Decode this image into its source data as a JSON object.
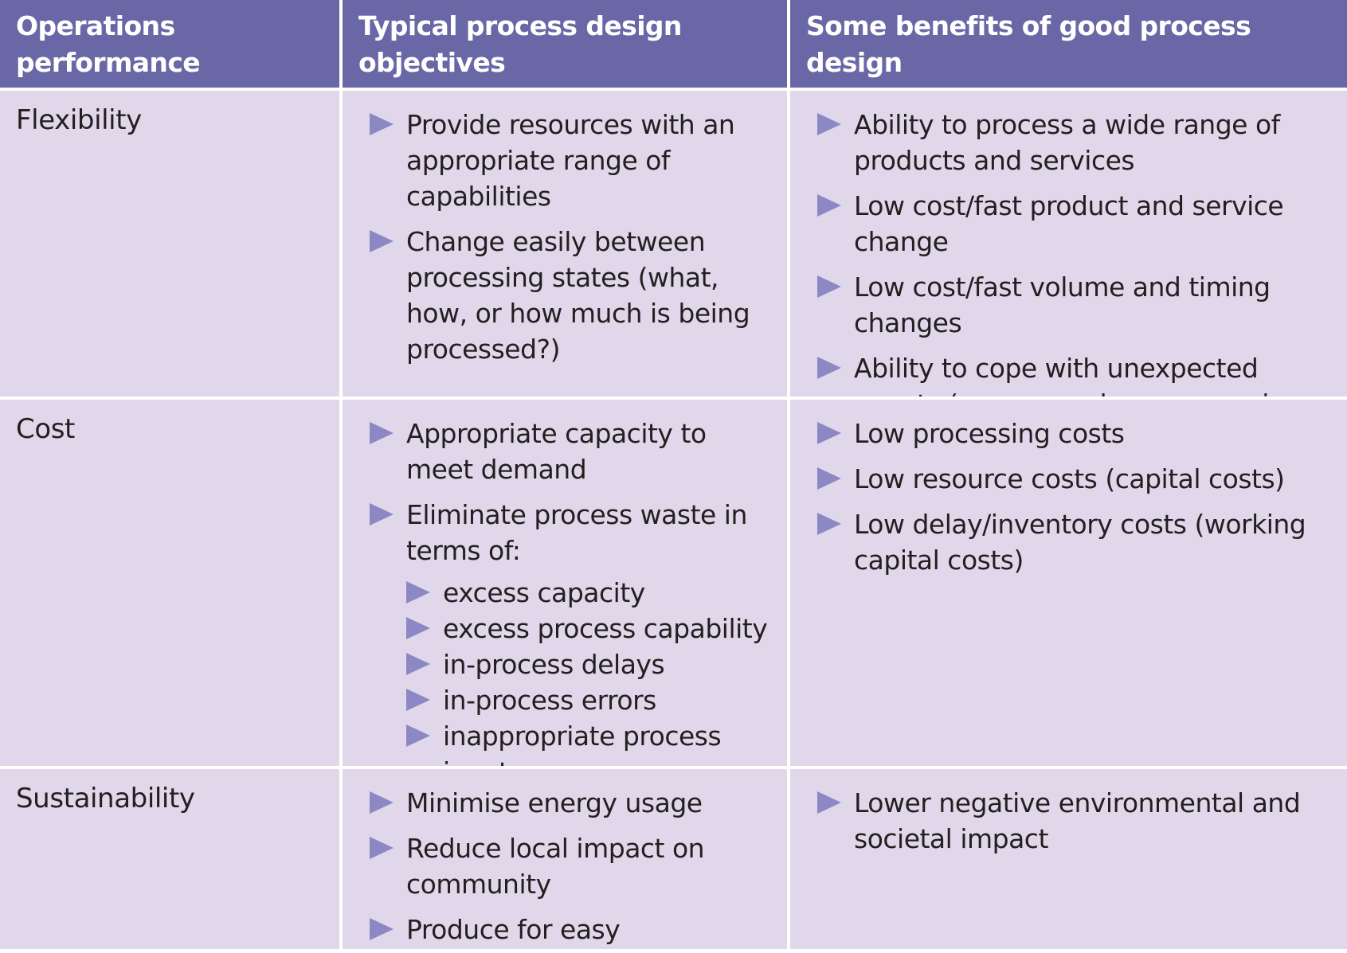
{
  "header": {
    "col1": "Operations performance objective",
    "col2": "Typical process design objectives",
    "col3": "Some benefits of good process design"
  },
  "rows": [
    {
      "label": "Flexibility",
      "objectives": [
        "Provide resources with an appropriate range of capabilities",
        "Change easily between processing states (what, how, or how much is being processed?)"
      ],
      "benefits": [
        "Ability to process a wide range of products and services",
        "Low cost/fast product and service change",
        "Low cost/fast volume and timing changes",
        "Ability to cope with unexpected events (e.g. a supply or processing failure)"
      ]
    },
    {
      "label": "Cost",
      "objectives": [
        "Appropriate capacity to meet demand",
        "Eliminate process waste in terms of:"
      ],
      "waste_items": [
        "excess capacity",
        "excess process capability",
        "in-process delays",
        "in-process errors",
        "inappropriate process inputs"
      ],
      "benefits": [
        "Low processing costs",
        "Low resource costs (capital costs)",
        "Low delay/inventory costs (working capital costs)"
      ]
    },
    {
      "label": "Sustainability",
      "objectives": [
        "Minimise energy usage",
        "Reduce local impact on community",
        "Produce for easy disassembly"
      ],
      "benefits": [
        "Lower negative environmental and societal impact"
      ]
    }
  ],
  "colors": {
    "header_bg": "#6a67a6",
    "cell_bg": "#e0d8ea",
    "bullet": "#8b88c4"
  },
  "icons": {
    "bullet": "triangle-bullet-icon"
  }
}
